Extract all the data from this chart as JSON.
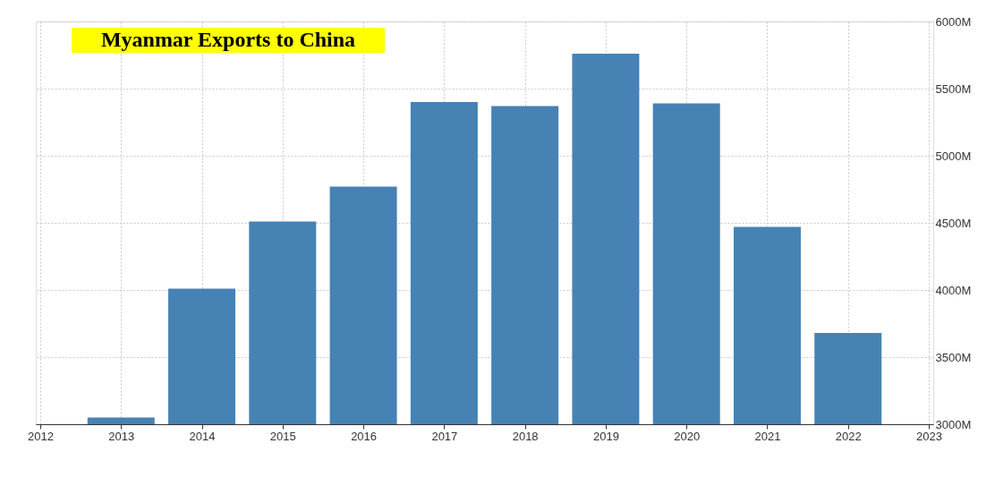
{
  "chart_data": {
    "type": "bar",
    "title": "Myanmar Exports to China",
    "x": [
      2013,
      2014,
      2015,
      2016,
      2017,
      2018,
      2019,
      2020,
      2021,
      2022
    ],
    "series": [
      {
        "color": "#4682b4",
        "values": [
          3050,
          4010,
          4510,
          4770,
          5400,
          5370,
          5760,
          5390,
          4470,
          3680
        ]
      }
    ],
    "xlim": [
      2012,
      2023
    ],
    "xticks": [
      2012,
      2013,
      2014,
      2015,
      2016,
      2017,
      2018,
      2019,
      2020,
      2021,
      2022,
      2023
    ],
    "ylim": [
      3000,
      6000
    ],
    "yticks": [
      {
        "value": 3000,
        "label": "3000M"
      },
      {
        "value": 3500,
        "label": "3500M"
      },
      {
        "value": 4000,
        "label": "4000M"
      },
      {
        "value": 4500,
        "label": "4500M"
      },
      {
        "value": 5000,
        "label": "5000M"
      },
      {
        "value": 5500,
        "label": "5500M"
      },
      {
        "value": 6000,
        "label": "6000M"
      }
    ],
    "grid": true
  }
}
